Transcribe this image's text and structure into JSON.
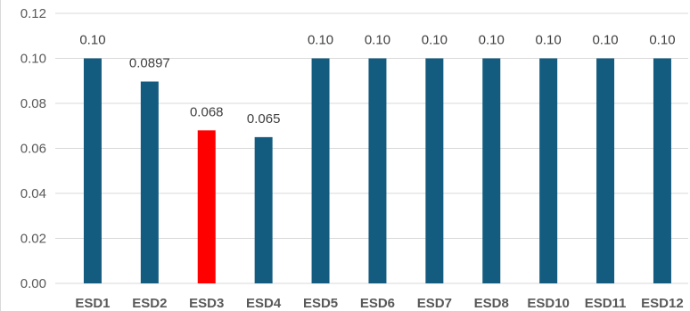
{
  "chart_data": {
    "type": "bar",
    "categories": [
      "ESD1",
      "ESD2",
      "ESD3",
      "ESD4",
      "ESD5",
      "ESD6",
      "ESD7",
      "ESD8",
      "ESD10",
      "ESD11",
      "ESD12"
    ],
    "values": [
      0.1,
      0.0897,
      0.068,
      0.065,
      0.1,
      0.1,
      0.1,
      0.1,
      0.1,
      0.1,
      0.1
    ],
    "data_labels": [
      "0.10",
      "0.0897",
      "0.068",
      "0.065",
      "0.10",
      "0.10",
      "0.10",
      "0.10",
      "0.10",
      "0.10",
      "0.10"
    ],
    "highlight_index": 2,
    "y_ticks": [
      "0.00",
      "0.02",
      "0.04",
      "0.06",
      "0.08",
      "0.10",
      "0.12"
    ],
    "ylim": [
      0,
      0.12
    ],
    "grid": true,
    "legend": "none",
    "colors": {
      "bar": "#145c7f",
      "highlight": "#ff0000",
      "grid": "#d9d9d9"
    }
  }
}
